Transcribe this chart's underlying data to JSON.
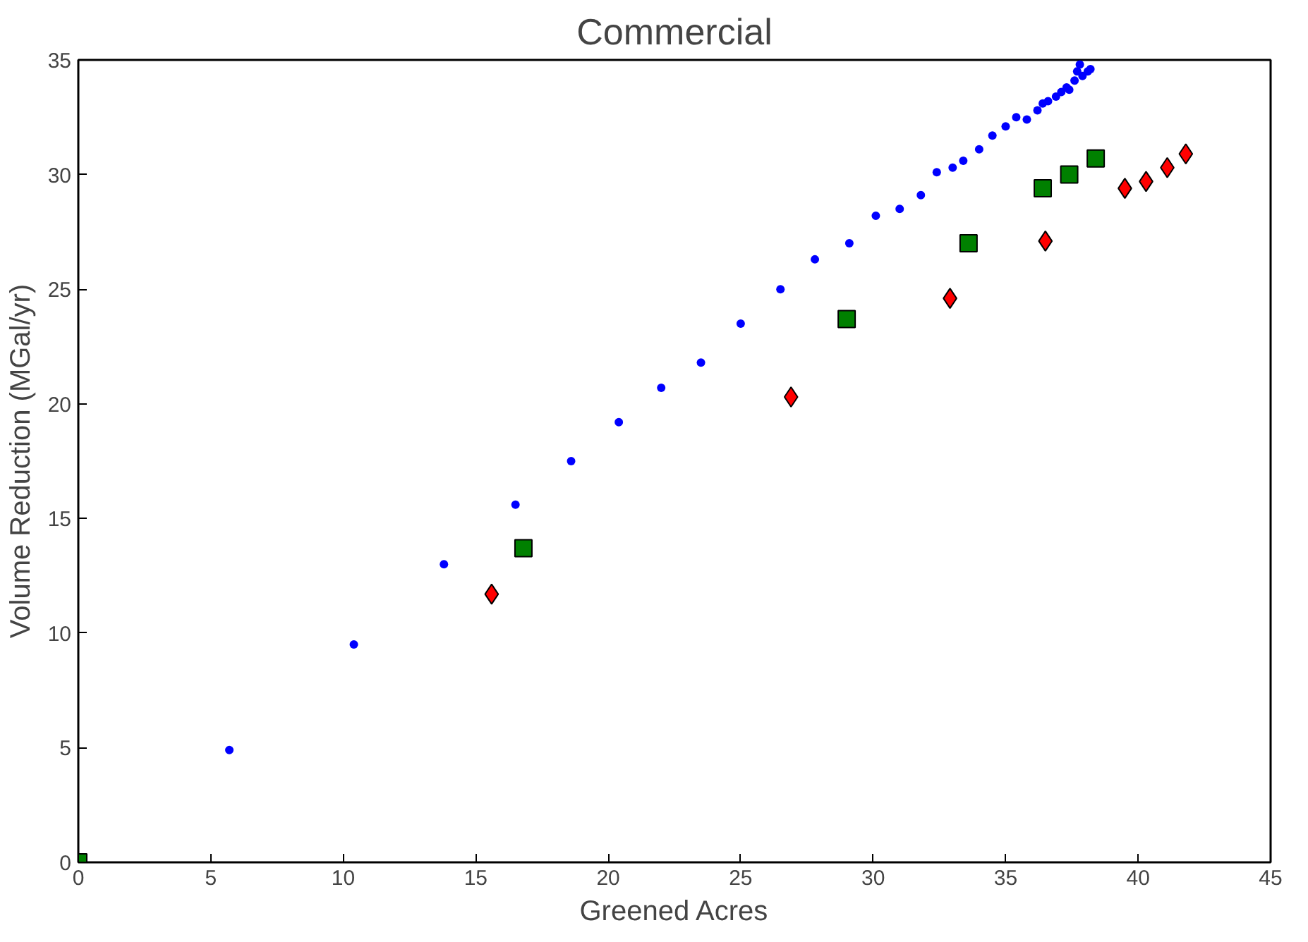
{
  "chart_data": {
    "type": "scatter",
    "title": "Commercial",
    "xlabel": "Greened Acres",
    "ylabel": "Volume Reduction (MGal/yr)",
    "xlim": [
      0,
      45
    ],
    "ylim": [
      0,
      35
    ],
    "xticks": [
      0,
      5,
      10,
      15,
      20,
      25,
      30,
      35,
      40,
      45
    ],
    "yticks": [
      0,
      5,
      10,
      15,
      20,
      25,
      30,
      35
    ],
    "grid": false,
    "series": [
      {
        "color": "#0000ff",
        "marker": "circle",
        "x": [
          5.7,
          10.4,
          13.8,
          16.5,
          18.6,
          20.4,
          22.0,
          23.5,
          25.0,
          26.5,
          27.8,
          29.1,
          30.1,
          31.0,
          31.8,
          32.4,
          33.0,
          33.4,
          34.0,
          34.5,
          35.0,
          35.4,
          35.8,
          36.2,
          36.4,
          36.6,
          36.9,
          37.1,
          37.3,
          37.4,
          37.6,
          37.7,
          37.8,
          37.9,
          38.1,
          38.2
        ],
        "values": [
          4.9,
          9.5,
          13.0,
          15.6,
          17.5,
          19.2,
          20.7,
          21.8,
          23.5,
          25.0,
          26.3,
          27.0,
          28.2,
          28.5,
          29.1,
          30.1,
          30.3,
          30.6,
          31.1,
          31.7,
          32.1,
          32.5,
          32.4,
          32.8,
          33.1,
          33.2,
          33.4,
          33.6,
          33.8,
          33.7,
          34.1,
          34.5,
          34.8,
          34.3,
          34.5,
          34.6
        ]
      },
      {
        "color": "#008000",
        "marker": "square",
        "x": [
          0,
          16.8,
          29.0,
          33.6,
          36.4,
          37.4,
          38.4
        ],
        "values": [
          0,
          13.7,
          23.7,
          27.0,
          29.4,
          30.0,
          30.7
        ]
      },
      {
        "color": "#ff0000",
        "marker": "diamond",
        "x": [
          15.6,
          26.9,
          32.9,
          36.5,
          39.5,
          40.3,
          41.1,
          41.8
        ],
        "values": [
          11.7,
          20.3,
          24.6,
          27.1,
          29.4,
          29.7,
          30.3,
          30.9
        ]
      }
    ]
  }
}
